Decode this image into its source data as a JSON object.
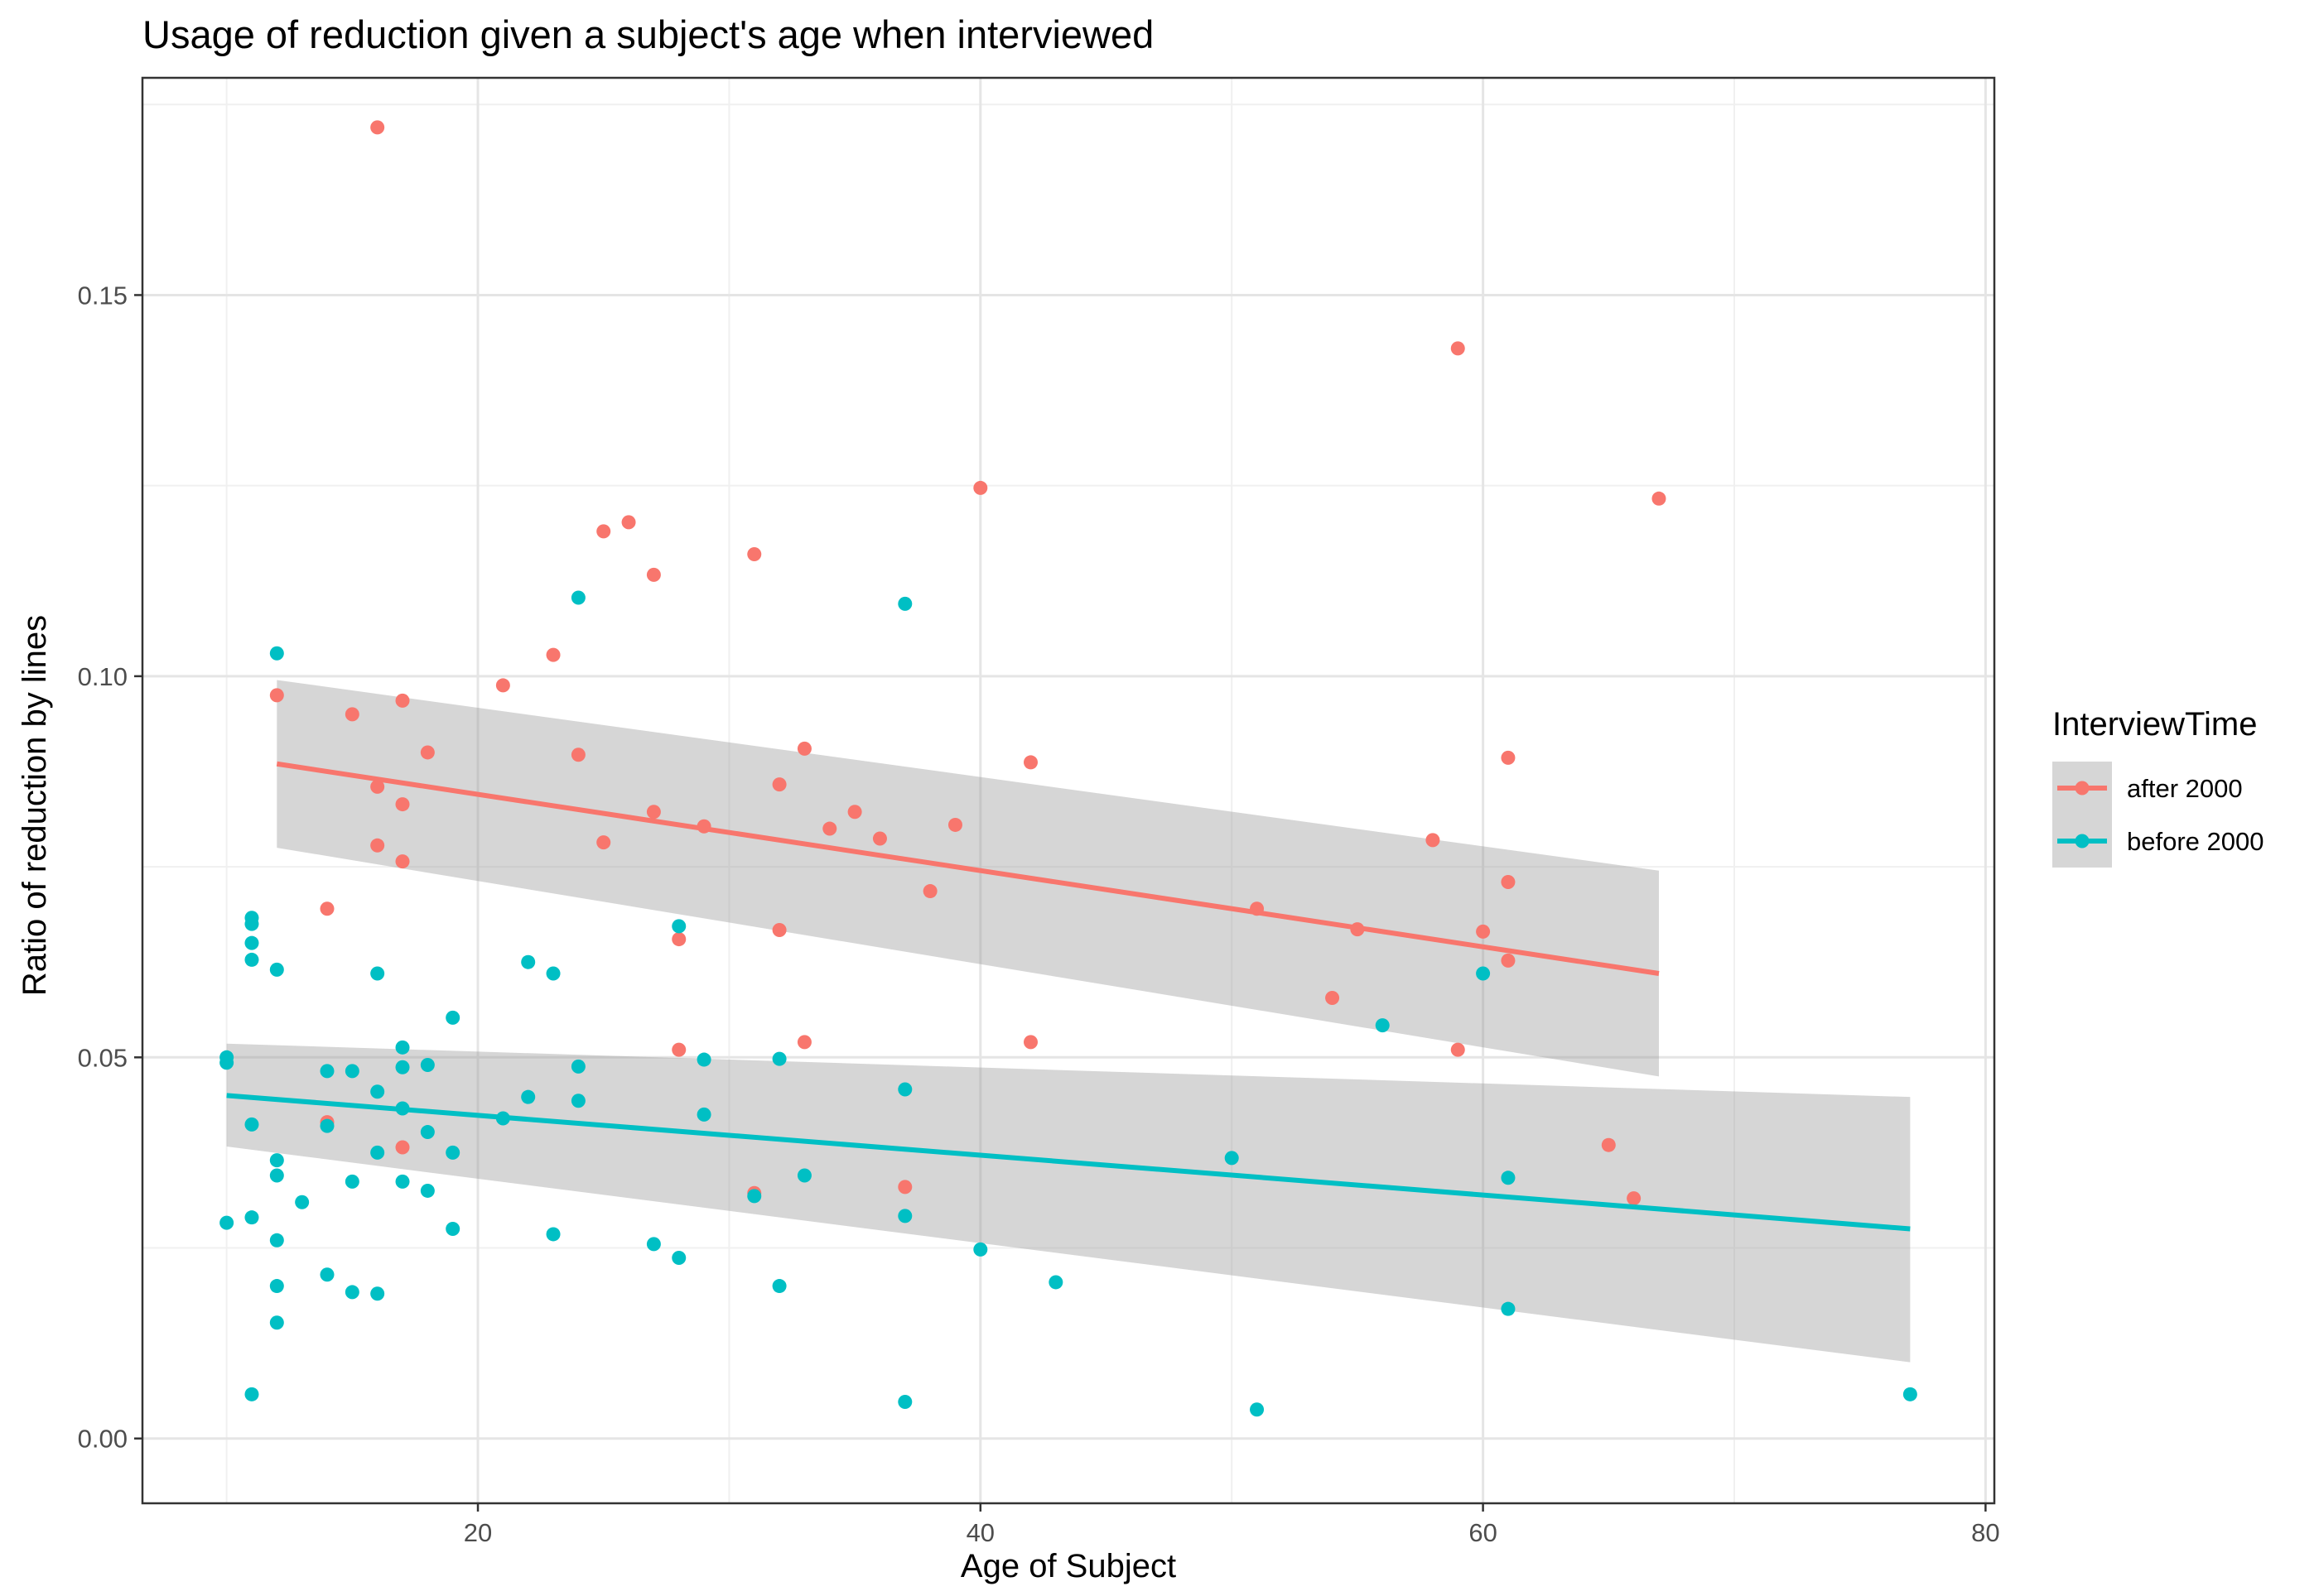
{
  "chart_data": {
    "type": "scatter",
    "title": "Usage of reduction given a subject's age when interviewed",
    "xlabel": "Age of Subject",
    "ylabel": "Ratio of reduction by lines",
    "xlim": [
      6.65,
      80.35
    ],
    "ylim": [
      -0.0085,
      0.1785
    ],
    "x_ticks": [
      20,
      40,
      60,
      80
    ],
    "x_tick_labels": [
      "20",
      "40",
      "60",
      "80"
    ],
    "y_ticks": [
      0.0,
      0.05,
      0.1,
      0.15
    ],
    "y_tick_labels": [
      "0.00",
      "0.05",
      "0.10",
      "0.15"
    ],
    "grid": true,
    "legend": {
      "title": "InterviewTime",
      "position": "right"
    },
    "series": [
      {
        "name": "after 2000",
        "color": "#F8766D",
        "points": [
          [
            12,
            0.0975
          ],
          [
            14,
            0.0695
          ],
          [
            14,
            0.0415
          ],
          [
            15,
            0.095
          ],
          [
            16,
            0.172
          ],
          [
            16,
            0.0855
          ],
          [
            16,
            0.0778
          ],
          [
            17,
            0.0968
          ],
          [
            17,
            0.0832
          ],
          [
            17,
            0.0757
          ],
          [
            17,
            0.0382
          ],
          [
            18,
            0.09
          ],
          [
            21,
            0.0988
          ],
          [
            23,
            0.1028
          ],
          [
            24,
            0.0897
          ],
          [
            25,
            0.119
          ],
          [
            25,
            0.0782
          ],
          [
            26,
            0.1202
          ],
          [
            27,
            0.1133
          ],
          [
            27,
            0.0822
          ],
          [
            28,
            0.0655
          ],
          [
            28,
            0.051
          ],
          [
            29,
            0.0803
          ],
          [
            31,
            0.116
          ],
          [
            31,
            0.0322
          ],
          [
            32,
            0.0858
          ],
          [
            32,
            0.0667
          ],
          [
            33,
            0.0905
          ],
          [
            33,
            0.052
          ],
          [
            34,
            0.08
          ],
          [
            35,
            0.0822
          ],
          [
            36,
            0.0787
          ],
          [
            37,
            0.033
          ],
          [
            38,
            0.0718
          ],
          [
            39,
            0.0805
          ],
          [
            40,
            0.1247
          ],
          [
            42,
            0.0887
          ],
          [
            42,
            0.052
          ],
          [
            51,
            0.0695
          ],
          [
            54,
            0.0578
          ],
          [
            55,
            0.0668
          ],
          [
            58,
            0.0785
          ],
          [
            59,
            0.143
          ],
          [
            59,
            0.051
          ],
          [
            60,
            0.0665
          ],
          [
            61,
            0.0893
          ],
          [
            61,
            0.073
          ],
          [
            61,
            0.0627
          ],
          [
            65,
            0.0385
          ],
          [
            66,
            0.0315
          ],
          [
            67,
            0.1233
          ]
        ],
        "trend": {
          "x": [
            12,
            67
          ],
          "y": [
            0.0885,
            0.061
          ]
        },
        "ci": {
          "x": [
            12,
            67
          ],
          "upper": [
            0.0995,
            0.0745
          ],
          "lower": [
            0.0775,
            0.0475
          ]
        }
      },
      {
        "name": "before 2000",
        "color": "#00BFC4",
        "points": [
          [
            10,
            0.05
          ],
          [
            10,
            0.0493
          ],
          [
            10,
            0.0283
          ],
          [
            11,
            0.0683
          ],
          [
            11,
            0.0675
          ],
          [
            11,
            0.065
          ],
          [
            11,
            0.0628
          ],
          [
            11,
            0.0412
          ],
          [
            11,
            0.029
          ],
          [
            11,
            0.0058
          ],
          [
            12,
            0.103
          ],
          [
            12,
            0.0615
          ],
          [
            12,
            0.0365
          ],
          [
            12,
            0.0345
          ],
          [
            12,
            0.026
          ],
          [
            12,
            0.02
          ],
          [
            12,
            0.0152
          ],
          [
            13,
            0.031
          ],
          [
            14,
            0.0482
          ],
          [
            14,
            0.041
          ],
          [
            14,
            0.0215
          ],
          [
            15,
            0.0482
          ],
          [
            15,
            0.0337
          ],
          [
            15,
            0.0192
          ],
          [
            16,
            0.061
          ],
          [
            16,
            0.0455
          ],
          [
            16,
            0.0375
          ],
          [
            16,
            0.019
          ],
          [
            17,
            0.0513
          ],
          [
            17,
            0.0487
          ],
          [
            17,
            0.0433
          ],
          [
            17,
            0.0337
          ],
          [
            18,
            0.049
          ],
          [
            18,
            0.0402
          ],
          [
            18,
            0.0325
          ],
          [
            19,
            0.0552
          ],
          [
            19,
            0.0375
          ],
          [
            19,
            0.0275
          ],
          [
            21,
            0.042
          ],
          [
            22,
            0.0625
          ],
          [
            22,
            0.0448
          ],
          [
            23,
            0.061
          ],
          [
            23,
            0.0268
          ],
          [
            24,
            0.1103
          ],
          [
            24,
            0.0488
          ],
          [
            24,
            0.0443
          ],
          [
            27,
            0.0255
          ],
          [
            28,
            0.0672
          ],
          [
            28,
            0.0237
          ],
          [
            29,
            0.0497
          ],
          [
            29,
            0.0425
          ],
          [
            31,
            0.0318
          ],
          [
            32,
            0.0498
          ],
          [
            32,
            0.02
          ],
          [
            33,
            0.0345
          ],
          [
            37,
            0.1095
          ],
          [
            37,
            0.0458
          ],
          [
            37,
            0.0292
          ],
          [
            37,
            0.0048
          ],
          [
            40,
            0.0248
          ],
          [
            43,
            0.0205
          ],
          [
            50,
            0.0368
          ],
          [
            51,
            0.0038
          ],
          [
            56,
            0.0542
          ],
          [
            60,
            0.061
          ],
          [
            61,
            0.0342
          ],
          [
            61,
            0.017
          ],
          [
            77,
            0.0058
          ]
        ],
        "trend": {
          "x": [
            10,
            77
          ],
          "y": [
            0.045,
            0.0275
          ]
        },
        "ci": {
          "x": [
            10,
            77
          ],
          "upper": [
            0.0518,
            0.0448
          ],
          "lower": [
            0.0383,
            0.01
          ]
        }
      }
    ]
  }
}
